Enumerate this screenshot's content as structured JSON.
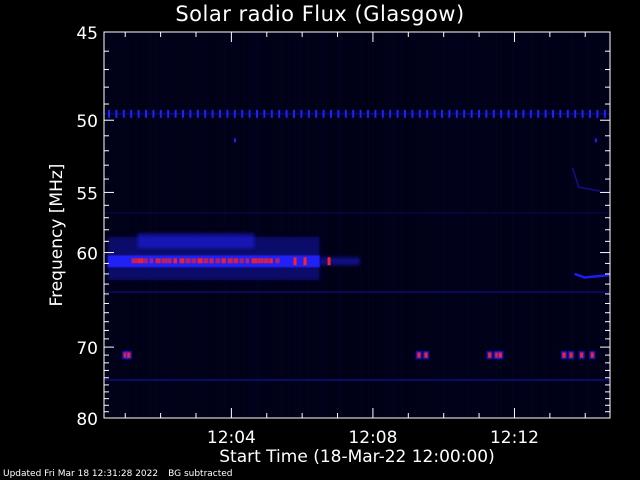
{
  "chart_data": {
    "type": "heatmap",
    "title": "Solar radio Flux (Glasgow)",
    "xlabel": "Start Time (18-Mar-22 12:00:00)",
    "ylabel": "Frequency [MHz]",
    "x_tick_labels": [
      "12:04",
      "12:08",
      "12:12"
    ],
    "x_tick_minutes": [
      4,
      8,
      12
    ],
    "xlim_minutes": [
      0.4,
      14.7
    ],
    "y_tick_values": [
      45,
      50,
      55,
      60,
      70,
      80
    ],
    "ylim": [
      45,
      80
    ],
    "y_scale": "reciprocal",
    "colorscale": [
      "#000014",
      "#0a0a78",
      "#2020ff",
      "#ff2020"
    ],
    "features": [
      {
        "name": "band-50",
        "freq": 49.6,
        "t_start": 0.4,
        "t_end": 14.7,
        "level": "blue-dotted"
      },
      {
        "name": "burst-60",
        "freq": 60.8,
        "t_start": 0.5,
        "t_end": 6.5,
        "level": "red"
      },
      {
        "name": "spikes-71",
        "freq": 71.0,
        "times": [
          1.0,
          1.1,
          9.3,
          9.5,
          11.3,
          11.5,
          11.6,
          13.4,
          13.6,
          13.9,
          14.2
        ],
        "level": "red"
      },
      {
        "name": "tail-62",
        "freq": 62.2,
        "t_start": 13.7,
        "t_end": 14.7,
        "level": "blue"
      }
    ]
  },
  "footer": {
    "updated": "Updated Fri Mar 18 12:31:28 2022",
    "note": "BG subtracted"
  }
}
